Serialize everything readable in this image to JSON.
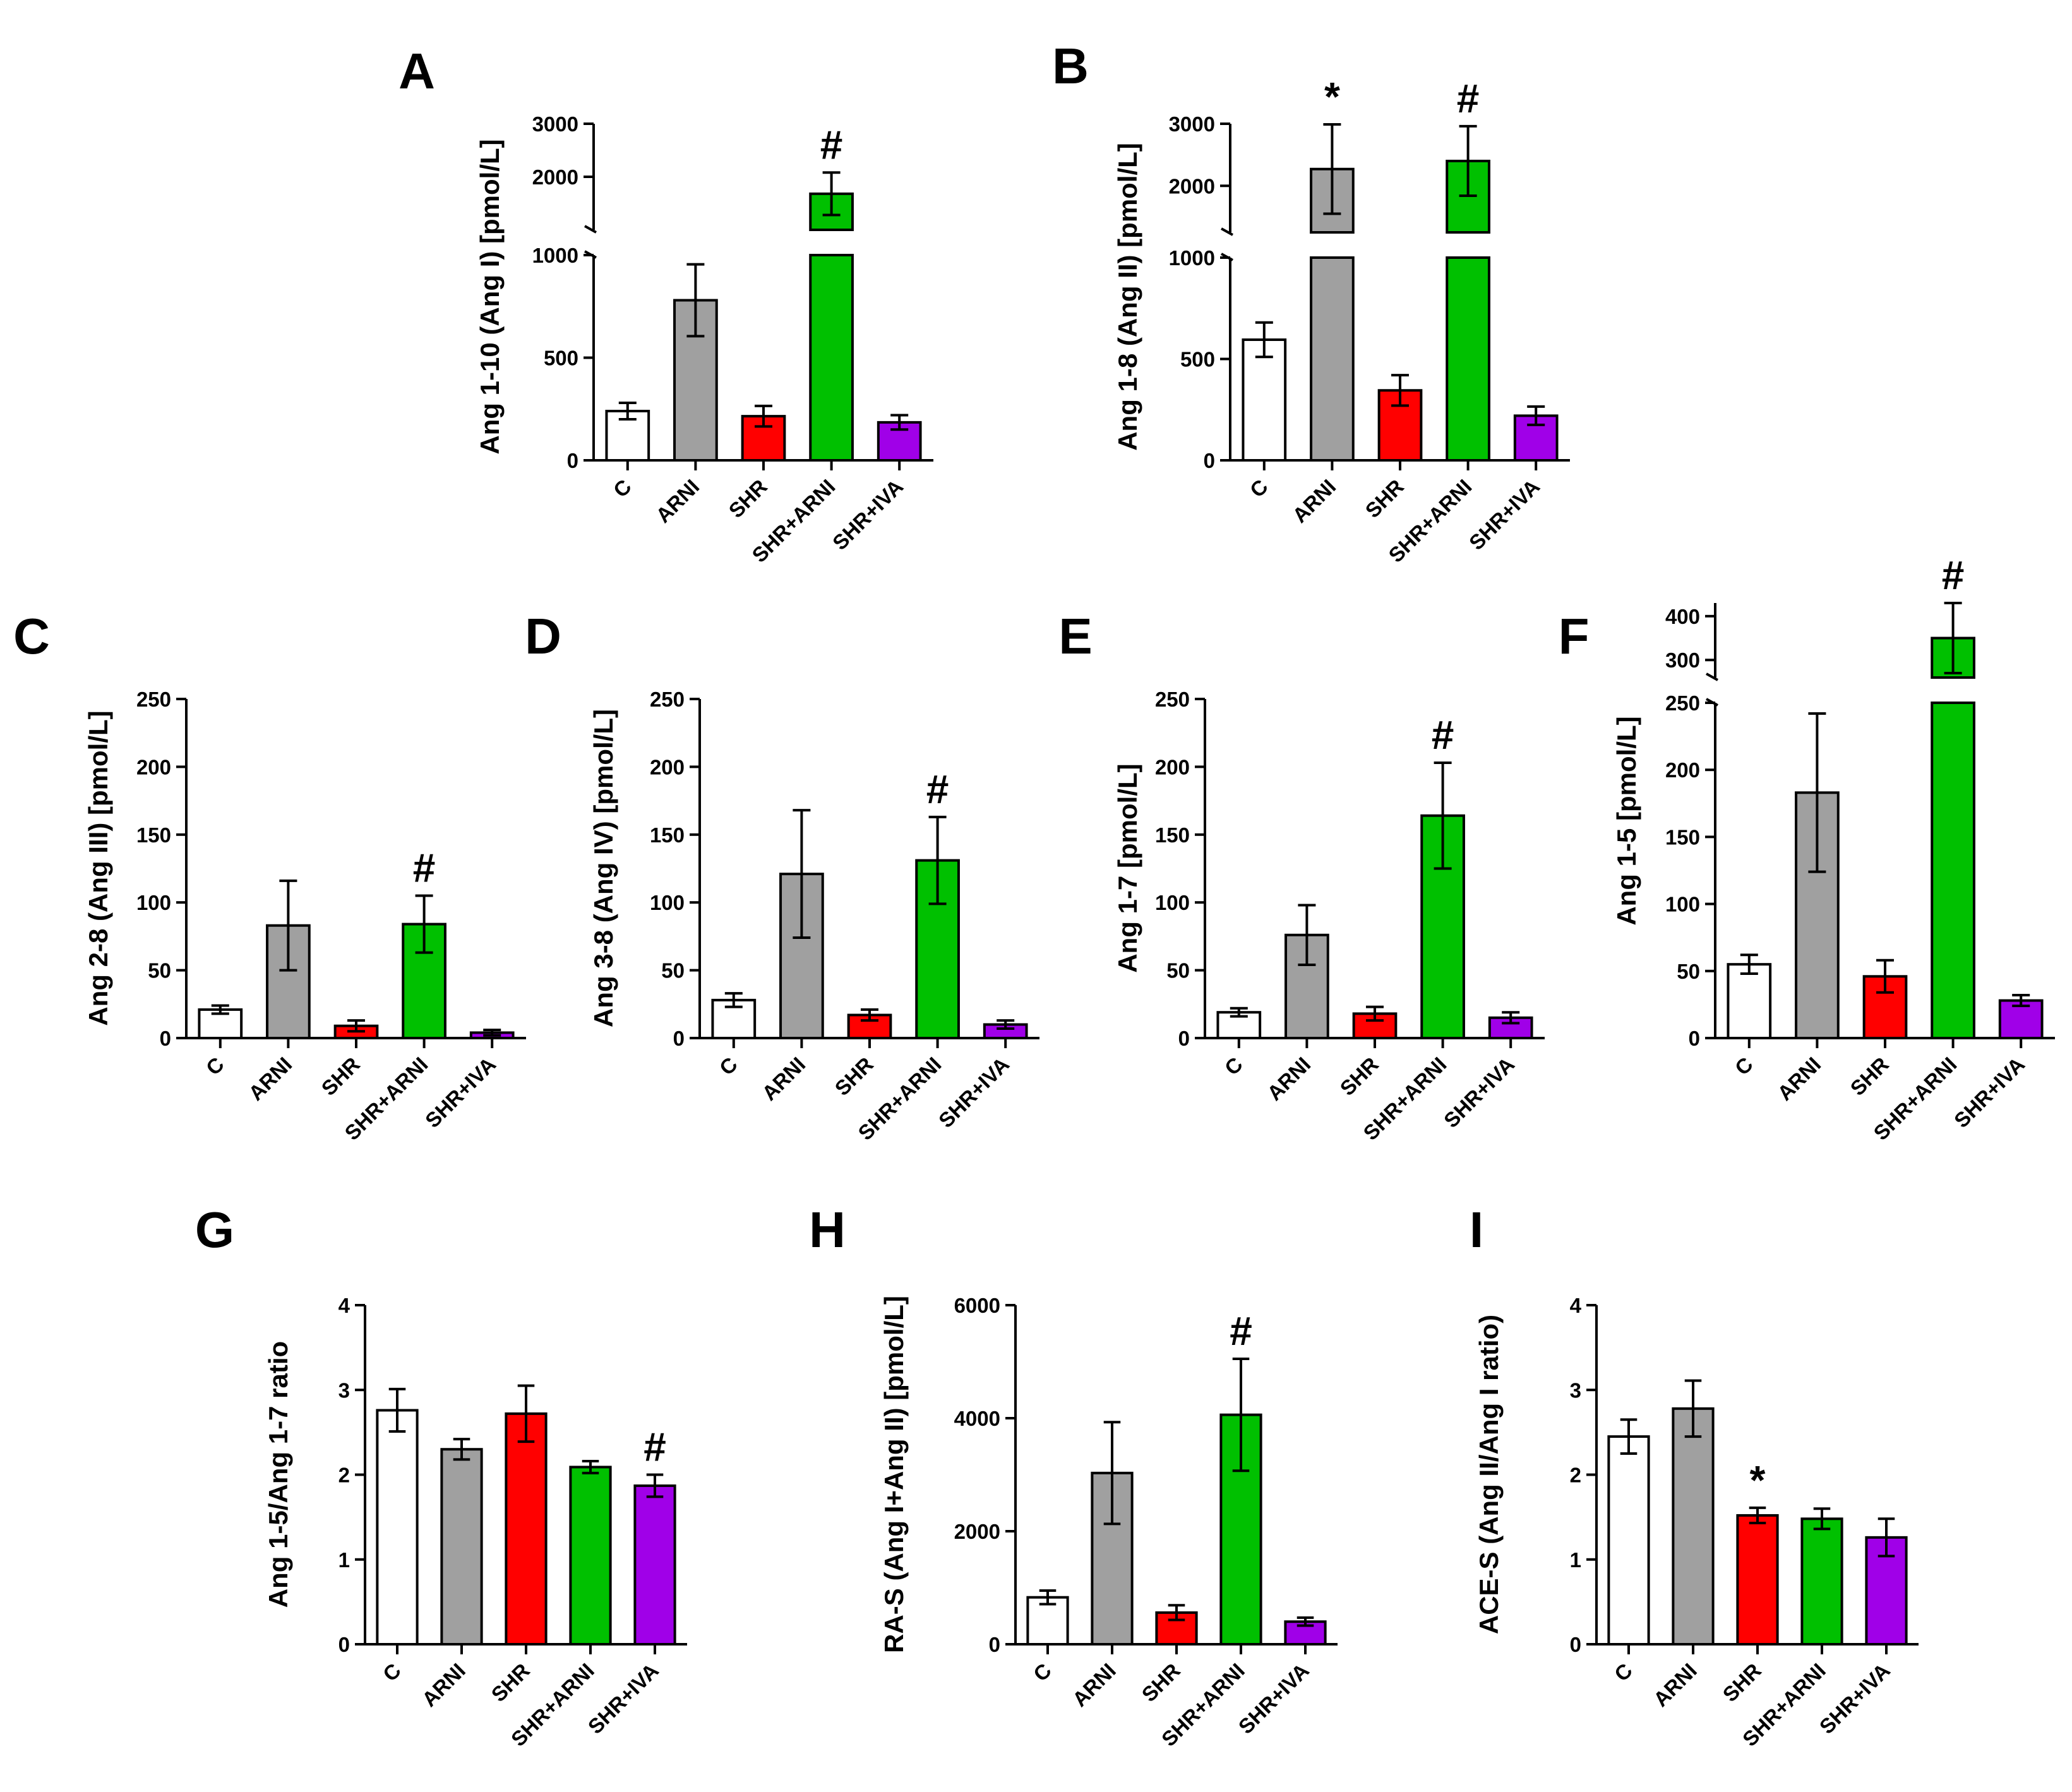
{
  "categories": [
    "C",
    "ARNI",
    "SHR",
    "SHR+ARNI",
    "SHR+IVA"
  ],
  "colors": {
    "C": "#ffffff",
    "ARNI": "#a0a0a0",
    "SHR": "#ff0000",
    "SHR+ARNI": "#00c000",
    "SHR+IVA": "#a000e8"
  },
  "chart_data": [
    {
      "panel": "A",
      "type": "bar",
      "ylabel": "Ang 1-10 (Ang I) [pmol/L]",
      "categories": [
        "C",
        "ARNI",
        "SHR",
        "SHR+ARNI",
        "SHR+IVA"
      ],
      "values": [
        240,
        780,
        215,
        1680,
        185
      ],
      "errors": [
        40,
        175,
        50,
        400,
        35
      ],
      "significance": [
        "",
        "",
        "",
        "#",
        ""
      ],
      "ylim": [
        0,
        3000
      ],
      "axis_break": {
        "lower_max": 1000,
        "upper_min": 1000,
        "upper_max": 3000
      },
      "lower_ticks": [
        0,
        500,
        1000
      ],
      "upper_ticks": [
        2000,
        3000
      ]
    },
    {
      "panel": "B",
      "type": "bar",
      "ylabel": "Ang 1-8 (Ang II) [pmol/L]",
      "categories": [
        "C",
        "ARNI",
        "SHR",
        "SHR+ARNI",
        "SHR+IVA"
      ],
      "values": [
        595,
        2270,
        345,
        2400,
        220
      ],
      "errors": [
        85,
        720,
        75,
        560,
        45
      ],
      "significance": [
        "",
        "*",
        "",
        "#",
        ""
      ],
      "ylim": [
        0,
        3000
      ],
      "axis_break": {
        "lower_max": 1000,
        "upper_min": 1250,
        "upper_max": 3000
      },
      "lower_ticks": [
        0,
        500,
        1000
      ],
      "upper_ticks": [
        2000,
        3000
      ]
    },
    {
      "panel": "C",
      "type": "bar",
      "ylabel": "Ang 2-8 (Ang III) [pmol/L]",
      "categories": [
        "C",
        "ARNI",
        "SHR",
        "SHR+ARNI",
        "SHR+IVA"
      ],
      "values": [
        21,
        83,
        9,
        84,
        4
      ],
      "errors": [
        3,
        33,
        4,
        21,
        2
      ],
      "significance": [
        "",
        "",
        "",
        "#",
        ""
      ],
      "ylim": [
        0,
        250
      ],
      "ticks": [
        0,
        50,
        100,
        150,
        200,
        250
      ]
    },
    {
      "panel": "D",
      "type": "bar",
      "ylabel": "Ang 3-8 (Ang IV) [pmol/L]",
      "categories": [
        "C",
        "ARNI",
        "SHR",
        "SHR+ARNI",
        "SHR+IVA"
      ],
      "values": [
        28,
        121,
        17,
        131,
        10
      ],
      "errors": [
        5,
        47,
        4,
        32,
        3
      ],
      "significance": [
        "",
        "",
        "",
        "#",
        ""
      ],
      "ylim": [
        0,
        250
      ],
      "ticks": [
        0,
        50,
        100,
        150,
        200,
        250
      ]
    },
    {
      "panel": "E",
      "type": "bar",
      "ylabel": "Ang 1-7 [pmol/L]",
      "categories": [
        "C",
        "ARNI",
        "SHR",
        "SHR+ARNI",
        "SHR+IVA"
      ],
      "values": [
        19,
        76,
        18,
        164,
        15
      ],
      "errors": [
        3,
        22,
        5,
        39,
        4
      ],
      "significance": [
        "",
        "",
        "",
        "#",
        ""
      ],
      "ylim": [
        0,
        250
      ],
      "ticks": [
        0,
        50,
        100,
        150,
        200,
        250
      ]
    },
    {
      "panel": "F",
      "type": "bar",
      "ylabel": "Ang 1-5 [pmol/L]",
      "categories": [
        "C",
        "ARNI",
        "SHR",
        "SHR+ARNI",
        "SHR+IVA"
      ],
      "values": [
        55,
        183,
        46,
        350,
        28
      ],
      "errors": [
        7,
        59,
        12,
        80,
        4
      ],
      "significance": [
        "",
        "",
        "",
        "#",
        ""
      ],
      "ylim": [
        0,
        430
      ],
      "axis_break": {
        "lower_max": 250,
        "upper_min": 260,
        "upper_max": 430
      },
      "lower_ticks": [
        0,
        50,
        100,
        150,
        200,
        250
      ],
      "upper_ticks": [
        300,
        400
      ]
    },
    {
      "panel": "G",
      "type": "bar",
      "ylabel": "Ang 1-5/Ang 1-7 ratio",
      "categories": [
        "C",
        "ARNI",
        "SHR",
        "SHR+ARNI",
        "SHR+IVA"
      ],
      "values": [
        2.76,
        2.3,
        2.72,
        2.09,
        1.87
      ],
      "errors": [
        0.25,
        0.12,
        0.33,
        0.07,
        0.13
      ],
      "significance": [
        "",
        "",
        "",
        "",
        "#"
      ],
      "ylim": [
        0,
        4
      ],
      "ticks": [
        0,
        1,
        2,
        3,
        4
      ]
    },
    {
      "panel": "H",
      "type": "bar",
      "ylabel": "RA-S (Ang I+Ang II) [pmol/L]",
      "categories": [
        "C",
        "ARNI",
        "SHR",
        "SHR+ARNI",
        "SHR+IVA"
      ],
      "values": [
        830,
        3030,
        560,
        4060,
        400
      ],
      "errors": [
        120,
        900,
        130,
        990,
        70
      ],
      "significance": [
        "",
        "",
        "",
        "#",
        ""
      ],
      "ylim": [
        0,
        6000
      ],
      "ticks": [
        0,
        2000,
        4000,
        6000
      ]
    },
    {
      "panel": "I",
      "type": "bar",
      "ylabel": "ACE-S (Ang II/Ang I ratio)",
      "categories": [
        "C",
        "ARNI",
        "SHR",
        "SHR+ARNI",
        "SHR+IVA"
      ],
      "values": [
        2.45,
        2.78,
        1.52,
        1.48,
        1.26
      ],
      "errors": [
        0.2,
        0.33,
        0.09,
        0.12,
        0.22
      ],
      "significance": [
        "",
        "",
        "*",
        "",
        ""
      ],
      "ylim": [
        0,
        4
      ],
      "ticks": [
        0,
        1,
        2,
        3,
        4
      ]
    }
  ]
}
